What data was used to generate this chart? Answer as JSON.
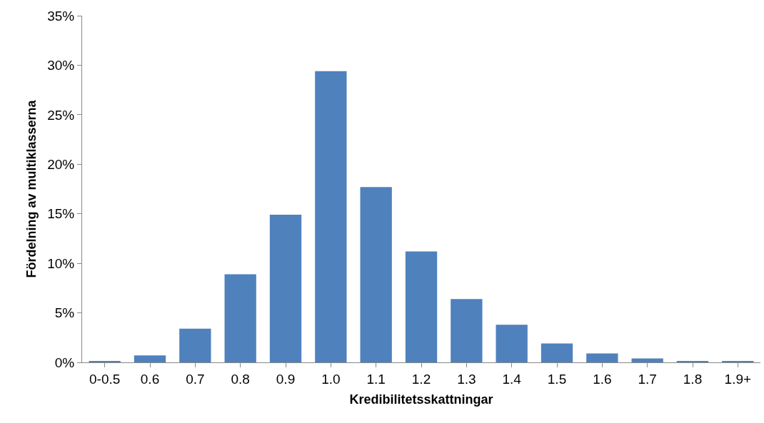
{
  "chart_data": {
    "type": "bar",
    "xlabel": "Kredibilitetsskattningar",
    "ylabel": "Fördelning av multiklasserna",
    "categories": [
      "0-0.5",
      "0.6",
      "0.7",
      "0.8",
      "0.9",
      "1.0",
      "1.1",
      "1.2",
      "1.3",
      "1.4",
      "1.5",
      "1.6",
      "1.7",
      "1.8",
      "1.9+"
    ],
    "values": [
      0.1,
      0.7,
      3.4,
      8.9,
      14.9,
      29.4,
      17.7,
      11.2,
      6.4,
      3.8,
      1.9,
      0.9,
      0.4,
      0.15,
      0.15
    ],
    "color": "#4f81bd",
    "ylim": [
      0,
      35
    ],
    "yticks": [
      {
        "value": 0,
        "label": "0%"
      },
      {
        "value": 5,
        "label": "5%"
      },
      {
        "value": 10,
        "label": "10%"
      },
      {
        "value": 15,
        "label": "15%"
      },
      {
        "value": 20,
        "label": "20%"
      },
      {
        "value": 25,
        "label": "25%"
      },
      {
        "value": 30,
        "label": "30%"
      },
      {
        "value": 35,
        "label": "35%"
      }
    ]
  }
}
